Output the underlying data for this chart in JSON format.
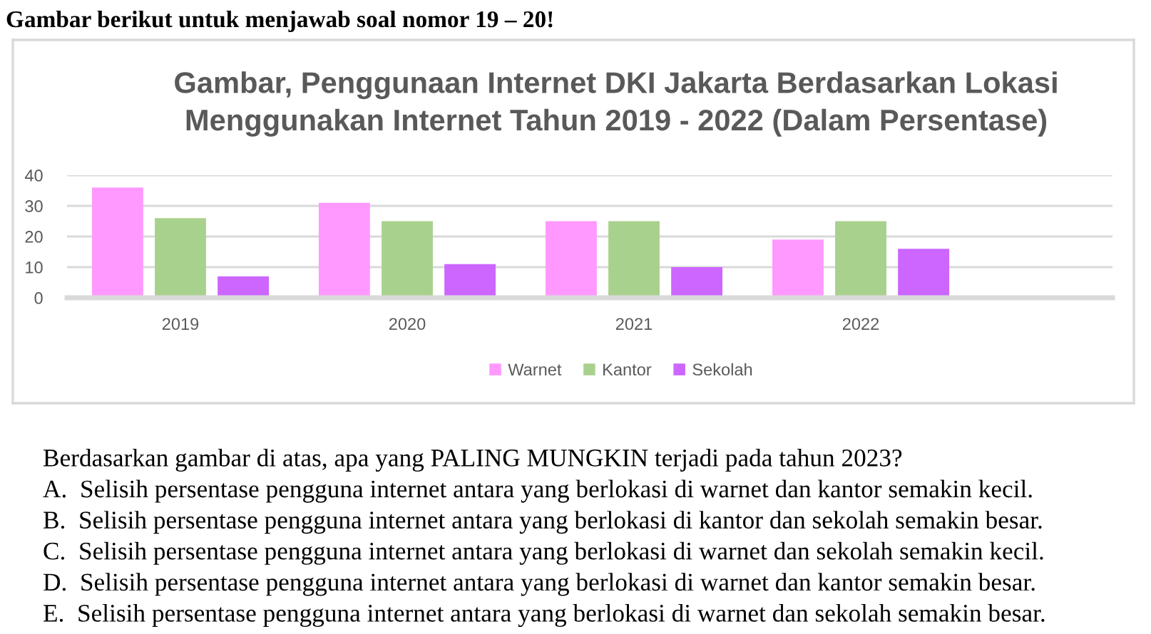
{
  "chart_data": {
    "type": "bar",
    "title": "Gambar, Penggunaan Internet DKI Jakarta Berdasarkan Lokasi\nMenggunakan Internet Tahun 2019 - 2022 (Dalam Persentase)",
    "categories": [
      "2019",
      "2020",
      "2021",
      "2022"
    ],
    "series": [
      {
        "name": "Warnet",
        "color": "#ff99ff",
        "values": [
          36,
          31,
          25,
          19
        ]
      },
      {
        "name": "Kantor",
        "color": "#a9d18e",
        "values": [
          26,
          25,
          25,
          25
        ]
      },
      {
        "name": "Sekolah",
        "color": "#cc66ff",
        "values": [
          7,
          11,
          10,
          16
        ]
      }
    ],
    "ylim": [
      0,
      40
    ],
    "yticks": [
      0,
      10,
      20,
      30,
      40
    ],
    "grid": "y",
    "legend": "bottom",
    "annotations": [
      "Gambar berikut untuk menjawab soal nomor 19 – 20!",
      "Berdasarkan gambar di atas, apa yang PALING MUNGKIN terjadi pada tahun 2023?",
      "A.  Selisih persentase pengguna internet antara yang berlokasi di warnet dan kantor semakin kecil.",
      "B.  Selisih persentase pengguna internet antara yang berlokasi di kantor dan sekolah semakin besar.",
      "C.  Selisih persentase pengguna internet antara yang berlokasi di warnet dan sekolah semakin kecil.",
      "D.  Selisih persentase pengguna internet antara yang berlokasi di warnet dan kantor semakin besar.",
      "E.  Selisih persentase pengguna internet antara yang berlokasi di warnet dan sekolah semakin besar."
    ]
  }
}
